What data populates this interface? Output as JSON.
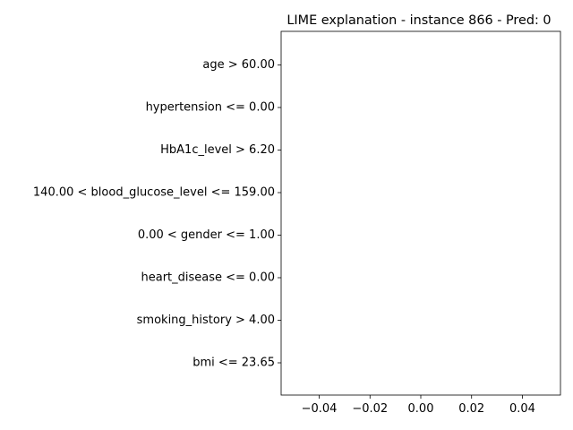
{
  "chart_data": {
    "type": "bar",
    "orientation": "horizontal",
    "title": "LIME explanation - instance 866 - Pred: 0",
    "xlabel": "",
    "ylabel": "",
    "categories": [
      "age > 60.00",
      "hypertension <= 0.00",
      "HbA1c_level > 6.20",
      "140.00 < blood_glucose_level <= 159.00",
      "0.00 < gender <= 1.00",
      "heart_disease <= 0.00",
      "smoking_history > 4.00",
      "bmi <= 23.65"
    ],
    "values": [
      0,
      0,
      0,
      0,
      0,
      0,
      0,
      0
    ],
    "xlim": [
      -0.055,
      0.055
    ],
    "xticks": [
      -0.04,
      -0.02,
      0.0,
      0.02,
      0.04
    ],
    "xtick_labels": [
      "−0.04",
      "−0.02",
      "0.00",
      "0.02",
      "0.04"
    ],
    "grid": false,
    "colors": {
      "axis": "#000000",
      "background": "#ffffff"
    }
  }
}
